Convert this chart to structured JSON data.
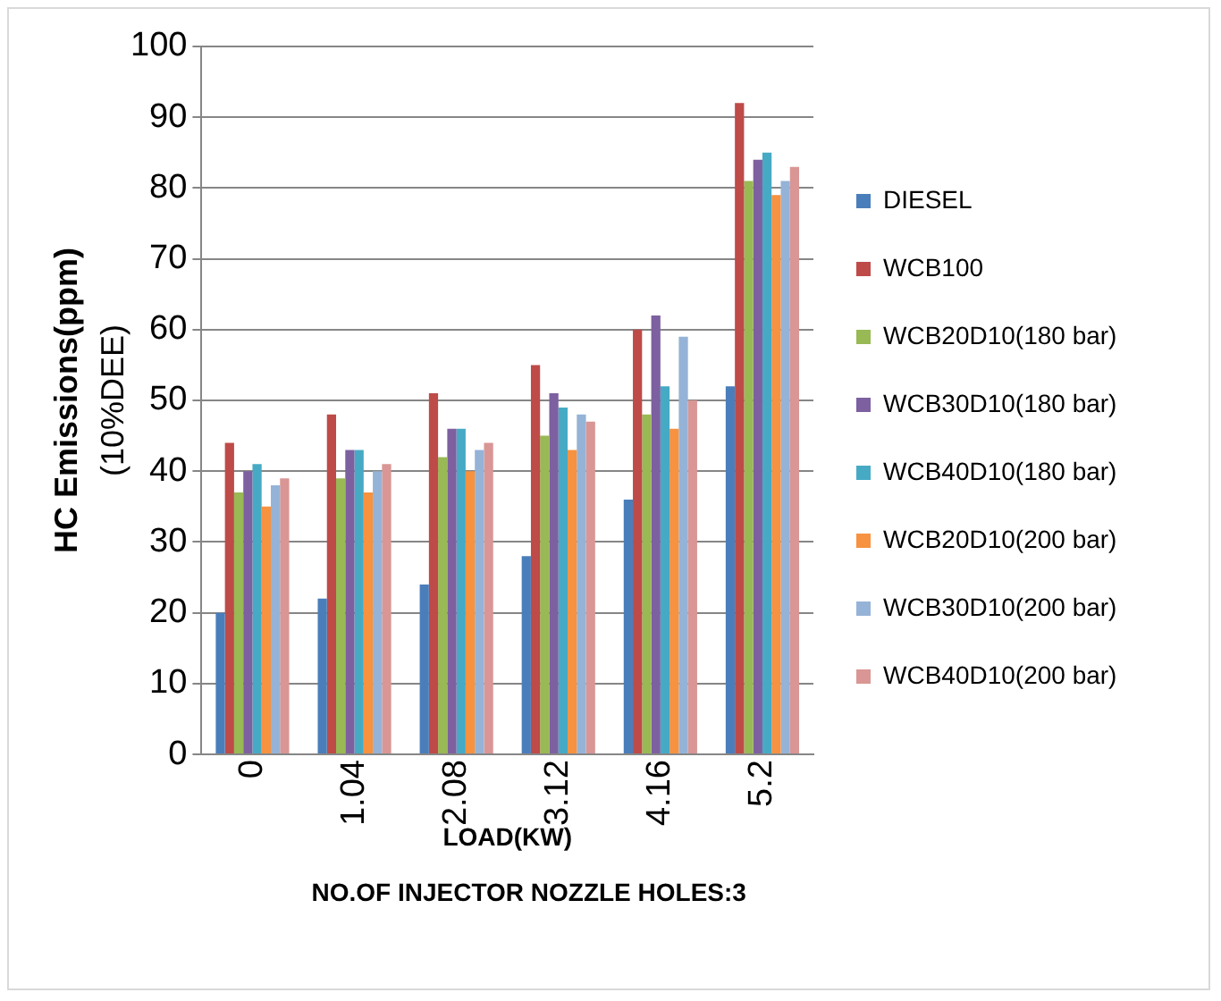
{
  "chart_data": {
    "type": "bar",
    "categories": [
      "0",
      "1.04",
      "2.08",
      "3.12",
      "4.16",
      "5.2"
    ],
    "xlabel": "LOAD(KW)",
    "ylabel": "HC Emissions(ppm)\n(10%DEE)",
    "annotations": [
      "NO.OF INJECTOR NOZZLE HOLES:3"
    ],
    "series": [
      {
        "name": "DIESEL",
        "color": "#4a7ebb",
        "values": [
          20,
          22,
          24,
          28,
          36,
          52
        ]
      },
      {
        "name": "WCB100",
        "color": "#be4b48",
        "values": [
          44,
          48,
          51,
          55,
          60,
          92
        ]
      },
      {
        "name": "WCB20D10(180 bar)",
        "color": "#98b954",
        "values": [
          37,
          39,
          42,
          45,
          48,
          81
        ]
      },
      {
        "name": "WCB30D10(180 bar)",
        "color": "#7d60a0",
        "values": [
          40,
          43,
          46,
          51,
          62,
          84
        ]
      },
      {
        "name": "WCB40D10(180 bar)",
        "color": "#46aac5",
        "values": [
          41,
          43,
          46,
          49,
          52,
          85
        ]
      },
      {
        "name": "WCB20D10(200 bar)",
        "color": "#f69240",
        "values": [
          35,
          37,
          40,
          43,
          46,
          79
        ]
      },
      {
        "name": "WCB30D10(200 bar)",
        "color": "#95b3d7",
        "values": [
          38,
          40,
          43,
          48,
          59,
          81
        ]
      },
      {
        "name": "WCB40D10(200 bar)",
        "color": "#d99694",
        "values": [
          39,
          41,
          44,
          47,
          50,
          83
        ]
      }
    ],
    "ylim": [
      0,
      100
    ],
    "yticks": [
      0,
      10,
      20,
      30,
      40,
      50,
      60,
      70,
      80,
      90,
      100
    ],
    "grid": "y",
    "legend": "right"
  }
}
